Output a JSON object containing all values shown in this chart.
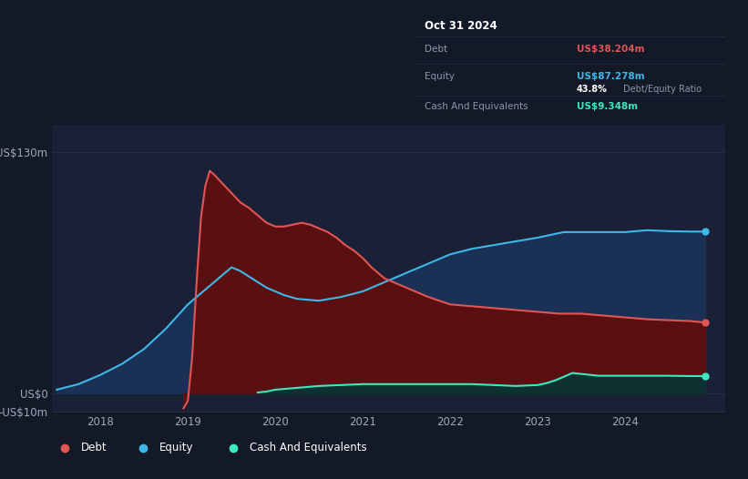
{
  "bg_color": "#131926",
  "plot_bg_color": "#1a2035",
  "grid_color": "#252d45",
  "debt_color": "#e05555",
  "equity_color": "#3db8e8",
  "cash_color": "#3de8c0",
  "debt_fill_color": "#5a1010",
  "equity_fill_color": "#1a3055",
  "cash_fill_color": "#0d3030",
  "tooltip_bg": "#080c14",
  "tooltip_date": "Oct 31 2024",
  "tooltip_debt_label": "Debt",
  "tooltip_debt_val": "US$38.204m",
  "tooltip_equity_label": "Equity",
  "tooltip_equity_val": "US$87.278m",
  "tooltip_ratio_pct": "43.8%",
  "tooltip_ratio_text": "Debt/Equity Ratio",
  "tooltip_cash_label": "Cash And Equivalents",
  "tooltip_cash_val": "US$9.348m",
  "xlim_min": 2017.45,
  "xlim_max": 2025.15,
  "ylim_min": -10,
  "ylim_max": 145,
  "xtick_pos": [
    2018,
    2019,
    2020,
    2021,
    2022,
    2023,
    2024
  ],
  "xtick_labels": [
    "2018",
    "2019",
    "2020",
    "2021",
    "2022",
    "2023",
    "2024"
  ],
  "ytick_pos": [
    -10,
    0,
    130
  ],
  "ytick_labels": [
    "-US$10m",
    "US$0",
    "US$130m"
  ],
  "equity_x": [
    2017.5,
    2017.75,
    2018.0,
    2018.25,
    2018.5,
    2018.75,
    2019.0,
    2019.1,
    2019.2,
    2019.3,
    2019.4,
    2019.5,
    2019.6,
    2019.7,
    2019.8,
    2019.9,
    2020.0,
    2020.1,
    2020.25,
    2020.5,
    2020.75,
    2021.0,
    2021.25,
    2021.5,
    2021.75,
    2022.0,
    2022.25,
    2022.5,
    2022.75,
    2023.0,
    2023.1,
    2023.2,
    2023.3,
    2023.5,
    2023.75,
    2024.0,
    2024.25,
    2024.5,
    2024.75,
    2024.917
  ],
  "equity_y": [
    2,
    5,
    10,
    16,
    24,
    35,
    48,
    52,
    56,
    60,
    64,
    68,
    66,
    63,
    60,
    57,
    55,
    53,
    51,
    50,
    52,
    55,
    60,
    65,
    70,
    75,
    78,
    80,
    82,
    84,
    85,
    86,
    87,
    87,
    87,
    87,
    88,
    87.5,
    87.278,
    87.278
  ],
  "debt_x": [
    2018.95,
    2019.0,
    2019.05,
    2019.1,
    2019.15,
    2019.2,
    2019.25,
    2019.3,
    2019.4,
    2019.5,
    2019.6,
    2019.7,
    2019.8,
    2019.9,
    2020.0,
    2020.1,
    2020.2,
    2020.3,
    2020.4,
    2020.5,
    2020.6,
    2020.7,
    2020.8,
    2020.9,
    2021.0,
    2021.1,
    2021.25,
    2021.5,
    2021.75,
    2022.0,
    2022.25,
    2022.5,
    2022.75,
    2023.0,
    2023.25,
    2023.5,
    2023.75,
    2024.0,
    2024.25,
    2024.5,
    2024.75,
    2024.917
  ],
  "debt_y": [
    -8,
    -4,
    20,
    60,
    95,
    112,
    120,
    118,
    113,
    108,
    103,
    100,
    96,
    92,
    90,
    90,
    91,
    92,
    91,
    89,
    87,
    84,
    80,
    77,
    73,
    68,
    62,
    57,
    52,
    48,
    47,
    46,
    45,
    44,
    43,
    43,
    42,
    41,
    40,
    39.5,
    39,
    38.204
  ],
  "cash_x": [
    2019.8,
    2019.9,
    2020.0,
    2020.25,
    2020.5,
    2020.75,
    2021.0,
    2021.25,
    2021.5,
    2021.75,
    2022.0,
    2022.25,
    2022.5,
    2022.75,
    2023.0,
    2023.1,
    2023.2,
    2023.3,
    2023.4,
    2023.5,
    2023.6,
    2023.7,
    2023.75,
    2024.0,
    2024.25,
    2024.5,
    2024.75,
    2024.917
  ],
  "cash_y": [
    0.5,
    1,
    2,
    3,
    4,
    4.5,
    5,
    5,
    5,
    5,
    5,
    5,
    4.5,
    4,
    4.5,
    5.5,
    7,
    9,
    11,
    10.5,
    10,
    9.5,
    9.5,
    9.5,
    9.5,
    9.5,
    9.348,
    9.348
  ],
  "legend_labels": [
    "Debt",
    "Equity",
    "Cash And Equivalents"
  ],
  "legend_colors": [
    "#e05555",
    "#3db8e8",
    "#3de8c0"
  ]
}
